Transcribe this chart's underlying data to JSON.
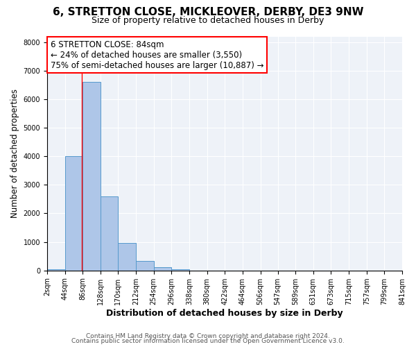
{
  "title": "6, STRETTON CLOSE, MICKLEOVER, DERBY, DE3 9NW",
  "subtitle": "Size of property relative to detached houses in Derby",
  "xlabel": "Distribution of detached houses by size in Derby",
  "ylabel": "Number of detached properties",
  "bin_edges": [
    2,
    44,
    86,
    128,
    170,
    212,
    254,
    296,
    338,
    380,
    422,
    464,
    506,
    547,
    589,
    631,
    673,
    715,
    757,
    799,
    841
  ],
  "bin_labels": [
    "2sqm",
    "44sqm",
    "86sqm",
    "128sqm",
    "170sqm",
    "212sqm",
    "254sqm",
    "296sqm",
    "338sqm",
    "380sqm",
    "422sqm",
    "464sqm",
    "506sqm",
    "547sqm",
    "589sqm",
    "631sqm",
    "673sqm",
    "715sqm",
    "757sqm",
    "799sqm",
    "841sqm"
  ],
  "counts": [
    50,
    4000,
    6600,
    2600,
    960,
    330,
    120,
    50,
    0,
    0,
    0,
    0,
    0,
    0,
    0,
    0,
    0,
    0,
    0,
    0
  ],
  "bar_color": "#aec6e8",
  "bar_edge_color": "#5599cc",
  "property_line_x": 84,
  "property_line_color": "red",
  "annotation_title": "6 STRETTON CLOSE: 84sqm",
  "annotation_line1": "← 24% of detached houses are smaller (3,550)",
  "annotation_line2": "75% of semi-detached houses are larger (10,887) →",
  "annotation_box_color": "white",
  "annotation_box_edge_color": "red",
  "ylim": [
    0,
    8200
  ],
  "yticks": [
    0,
    1000,
    2000,
    3000,
    4000,
    5000,
    6000,
    7000,
    8000
  ],
  "background_color": "#eef2f8",
  "footer1": "Contains HM Land Registry data © Crown copyright and database right 2024.",
  "footer2": "Contains public sector information licensed under the Open Government Licence v3.0.",
  "grid_color": "white",
  "title_fontsize": 11,
  "subtitle_fontsize": 9,
  "xlabel_fontsize": 9,
  "ylabel_fontsize": 8.5,
  "tick_fontsize": 7,
  "annotation_fontsize": 8.5,
  "footer_fontsize": 6.5
}
